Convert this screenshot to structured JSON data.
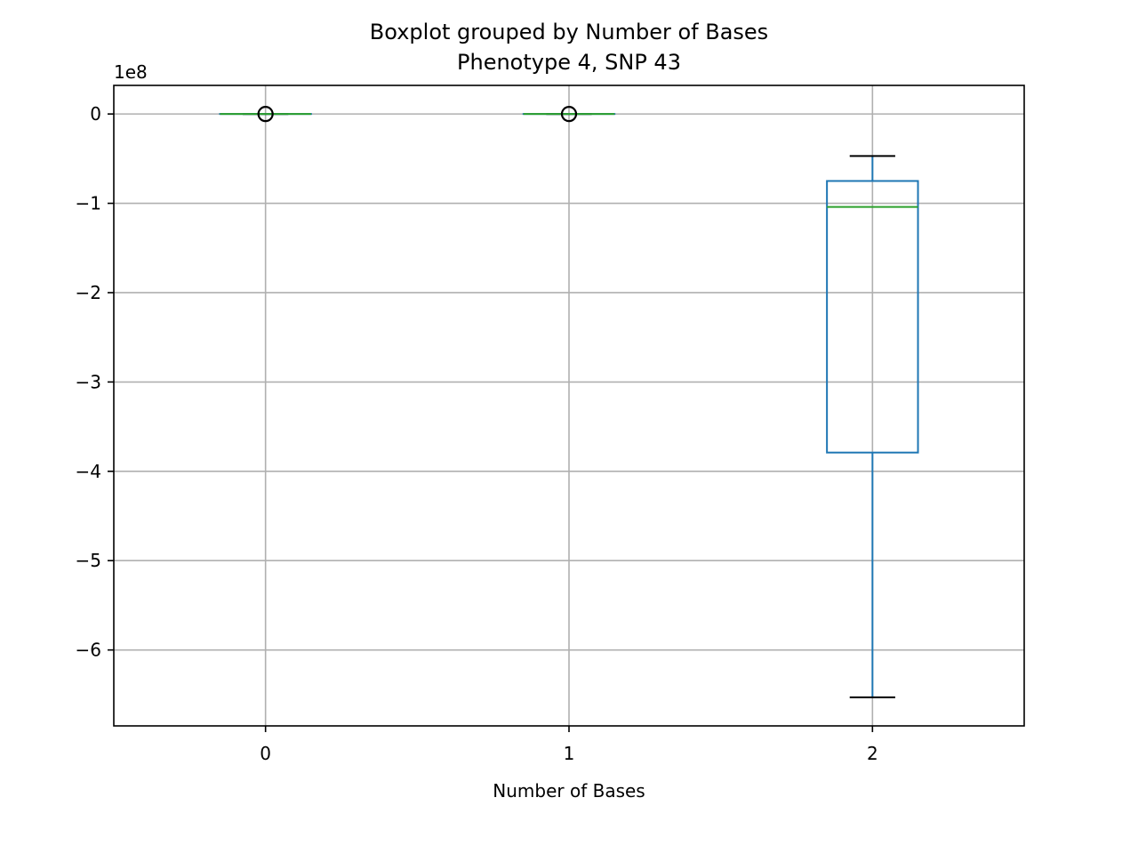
{
  "chart_data": {
    "type": "boxplot",
    "title": "Boxplot grouped by Number of Bases",
    "subtitle": "Phenotype 4, SNP 43",
    "xlabel": "Number of Bases",
    "ylabel": "",
    "y_offset_label": "1e8",
    "scale_factor": 100000000,
    "categories": [
      "0",
      "1",
      "2"
    ],
    "ylim": [
      -6.85,
      0.32
    ],
    "yticks": [
      0,
      -1,
      -2,
      -3,
      -4,
      -5,
      -6
    ],
    "ytick_labels": [
      "0",
      "−1",
      "−2",
      "−3",
      "−4",
      "−5",
      "−6"
    ],
    "grid": true,
    "boxes": [
      {
        "category": "0",
        "whisker_low": 0,
        "q1": 0,
        "median": 0,
        "q3": 0,
        "whisker_high": 0,
        "fliers": [
          0
        ]
      },
      {
        "category": "1",
        "whisker_low": 0,
        "q1": 0,
        "median": 0,
        "q3": 0,
        "whisker_high": 0,
        "fliers": [
          0
        ]
      },
      {
        "category": "2",
        "whisker_low": -6.53,
        "q1": -3.79,
        "median": -1.04,
        "q3": -0.75,
        "whisker_high": -0.47,
        "fliers": []
      }
    ],
    "colors": {
      "box": "#1f77b4",
      "median": "#2ca02c",
      "whisker_cap": "#000000",
      "flier": "#000000",
      "grid": "#b0b0b0",
      "axes": "#000000"
    }
  }
}
